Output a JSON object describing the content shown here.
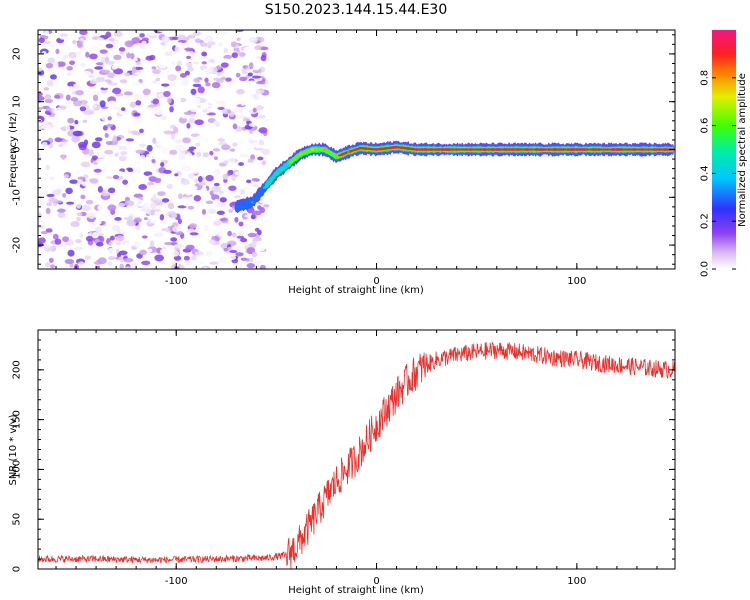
{
  "figure_title": "S150.2023.144.15.44.E30",
  "chart_data": [
    {
      "type": "heatmap",
      "title": "",
      "xlabel": "Height of straight line (km)",
      "ylabel": "Frequency (Hz)",
      "xlim": [
        -169,
        149
      ],
      "ylim": [
        -25,
        25
      ],
      "xticks": [
        -100,
        0,
        100
      ],
      "yticks": [
        -20,
        -10,
        0,
        10,
        20
      ],
      "description_series": {
        "name": "peak frequency ridge",
        "x": [
          -70,
          -62,
          -56,
          -50,
          -44,
          -38,
          -32,
          -26,
          -20,
          -14,
          -8,
          0,
          10,
          20,
          40,
          60,
          80,
          100,
          120,
          148
        ],
        "y": [
          -12,
          -11,
          -8,
          -5,
          -3,
          -1,
          0,
          0,
          -1.5,
          -0.5,
          0.3,
          0,
          0.5,
          0,
          0,
          0,
          0,
          0,
          0,
          0
        ],
        "amplitude": [
          0.3,
          0.35,
          0.4,
          0.45,
          0.55,
          0.65,
          0.75,
          0.8,
          0.8,
          0.85,
          0.9,
          0.95,
          0.95,
          0.95,
          0.95,
          0.95,
          0.95,
          0.95,
          0.95,
          0.95
        ]
      },
      "noise_region_x": [
        -169,
        -55
      ],
      "colorbar": {
        "label": "Normalized spectral amplitude",
        "ticks": [
          "0.0",
          "0.2",
          "0.4",
          "0.6",
          "0.8"
        ],
        "range": [
          0,
          1
        ]
      }
    },
    {
      "type": "line",
      "title": "",
      "xlabel": "Height of straight line (km)",
      "ylabel": "SNR (10 * v/v)",
      "xlim": [
        -169,
        149
      ],
      "ylim": [
        0,
        240
      ],
      "xticks": [
        -100,
        0,
        100
      ],
      "yticks": [
        0,
        50,
        100,
        150,
        200
      ],
      "color": "#e8302c",
      "series": [
        {
          "name": "SNR",
          "x": [
            -169,
            -140,
            -110,
            -80,
            -55,
            -45,
            -40,
            -35,
            -30,
            -25,
            -20,
            -15,
            -10,
            -5,
            0,
            5,
            10,
            15,
            20,
            25,
            30,
            40,
            50,
            60,
            70,
            80,
            90,
            100,
            110,
            120,
            130,
            140,
            149
          ],
          "y": [
            10,
            10,
            9,
            10,
            11,
            14,
            22,
            38,
            55,
            72,
            88,
            100,
            112,
            128,
            145,
            160,
            175,
            188,
            198,
            205,
            210,
            215,
            218,
            220,
            218,
            215,
            212,
            210,
            207,
            205,
            203,
            201,
            200
          ]
        }
      ]
    }
  ]
}
